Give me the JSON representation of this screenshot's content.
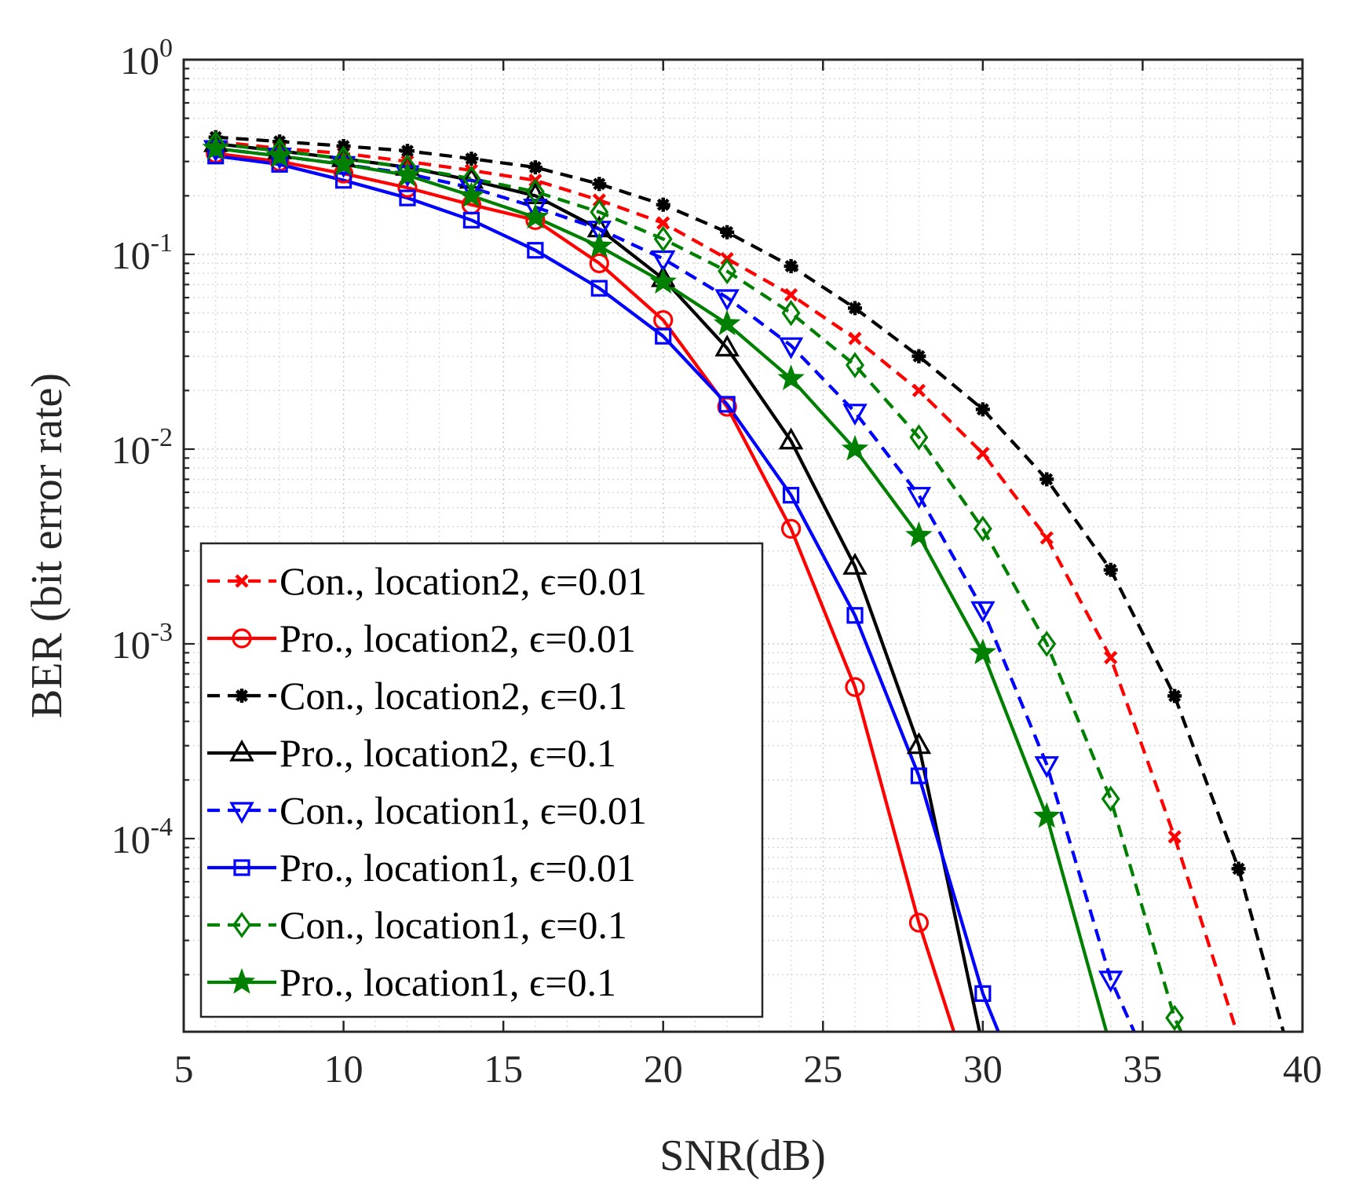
{
  "chart_data": {
    "type": "line",
    "title": "",
    "xlabel": "SNR(dB)",
    "ylabel": "BER (bit error rate)",
    "xlim": [
      5,
      40
    ],
    "ylim": [
      1e-05,
      1
    ],
    "yscale": "log",
    "grid": true,
    "legend_position": "bottom-left",
    "x_ticks": [
      "5",
      "10",
      "15",
      "20",
      "25",
      "30",
      "35",
      "40"
    ],
    "y_ticks": [
      {
        "base": "10",
        "exp": "0"
      },
      {
        "base": "10",
        "exp": "-1"
      },
      {
        "base": "10",
        "exp": "-2"
      },
      {
        "base": "10",
        "exp": "-3"
      },
      {
        "base": "10",
        "exp": "-4"
      }
    ],
    "series": [
      {
        "name": "Con., location2, ϵ=0.01",
        "color": "#ff0000",
        "style": "dashed",
        "marker": "x",
        "x": [
          6,
          8,
          10,
          12,
          14,
          16,
          18,
          20,
          22,
          24,
          26,
          28,
          30,
          32,
          34,
          36,
          38
        ],
        "y": [
          0.38,
          0.35,
          0.33,
          0.3,
          0.27,
          0.24,
          0.19,
          0.145,
          0.095,
          0.062,
          0.037,
          0.02,
          0.0095,
          0.0035,
          0.00085,
          0.000102,
          9.5e-06
        ]
      },
      {
        "name": "Pro., location2, ϵ=0.01",
        "color": "#ff0000",
        "style": "solid",
        "marker": "circle",
        "x": [
          6,
          8,
          10,
          12,
          14,
          16,
          18,
          20,
          22,
          24,
          26,
          28,
          30
        ],
        "y": [
          0.33,
          0.3,
          0.26,
          0.22,
          0.18,
          0.15,
          0.09,
          0.046,
          0.0165,
          0.0039,
          0.0006,
          3.7e-05,
          3.5e-06
        ]
      },
      {
        "name": "Con., location2, ϵ=0.1",
        "color": "#000000",
        "style": "dashed",
        "marker": "asterisk",
        "x": [
          6,
          8,
          10,
          12,
          14,
          16,
          18,
          20,
          22,
          24,
          26,
          28,
          30,
          32,
          34,
          36,
          38,
          40
        ],
        "y": [
          0.4,
          0.38,
          0.36,
          0.34,
          0.31,
          0.28,
          0.23,
          0.18,
          0.13,
          0.087,
          0.053,
          0.03,
          0.016,
          0.007,
          0.0024,
          0.00054,
          7e-05,
          4.5e-06
        ]
      },
      {
        "name": "Pro., location2, ϵ=0.1",
        "color": "#000000",
        "style": "solid",
        "marker": "triangle-up",
        "x": [
          6,
          8,
          10,
          12,
          14,
          16,
          18,
          20,
          22,
          24,
          26,
          28,
          30
        ],
        "y": [
          0.37,
          0.34,
          0.31,
          0.28,
          0.24,
          0.2,
          0.135,
          0.075,
          0.033,
          0.011,
          0.0025,
          0.0003,
          8.5e-06
        ]
      },
      {
        "name": "Con., location1, ϵ=0.01",
        "color": "#0000ff",
        "style": "dashed",
        "marker": "triangle-down",
        "x": [
          6,
          8,
          10,
          12,
          14,
          16,
          18,
          20,
          22,
          24,
          26,
          28,
          30,
          32,
          34,
          36
        ],
        "y": [
          0.35,
          0.32,
          0.29,
          0.26,
          0.22,
          0.175,
          0.135,
          0.095,
          0.06,
          0.034,
          0.0155,
          0.0058,
          0.0015,
          0.00024,
          1.9e-05,
          3.5e-06
        ]
      },
      {
        "name": "Pro., location1, ϵ=0.01",
        "color": "#0000ff",
        "style": "solid",
        "marker": "square",
        "x": [
          6,
          8,
          10,
          12,
          14,
          16,
          18,
          20,
          22,
          24,
          26,
          28,
          30,
          32
        ],
        "y": [
          0.32,
          0.29,
          0.24,
          0.195,
          0.15,
          0.105,
          0.067,
          0.038,
          0.017,
          0.0058,
          0.0014,
          0.00021,
          1.6e-05,
          2.5e-06
        ]
      },
      {
        "name": "Con., location1, ϵ=0.1",
        "color": "#008000",
        "style": "dashed",
        "marker": "diamond",
        "x": [
          6,
          8,
          10,
          12,
          14,
          16,
          18,
          20,
          22,
          24,
          26,
          28,
          30,
          32,
          34,
          36,
          38
        ],
        "y": [
          0.37,
          0.34,
          0.31,
          0.28,
          0.245,
          0.21,
          0.165,
          0.12,
          0.082,
          0.05,
          0.027,
          0.0115,
          0.0039,
          0.001,
          0.00016,
          1.2e-05,
          2.5e-06
        ]
      },
      {
        "name": "Pro., location1, ϵ=0.1",
        "color": "#008000",
        "style": "solid",
        "marker": "star",
        "x": [
          6,
          8,
          10,
          12,
          14,
          16,
          18,
          20,
          22,
          24,
          26,
          28,
          30,
          32,
          34
        ],
        "y": [
          0.35,
          0.32,
          0.29,
          0.255,
          0.2,
          0.155,
          0.11,
          0.072,
          0.044,
          0.023,
          0.01,
          0.0036,
          0.0009,
          0.00013,
          8.5e-06
        ]
      }
    ]
  }
}
